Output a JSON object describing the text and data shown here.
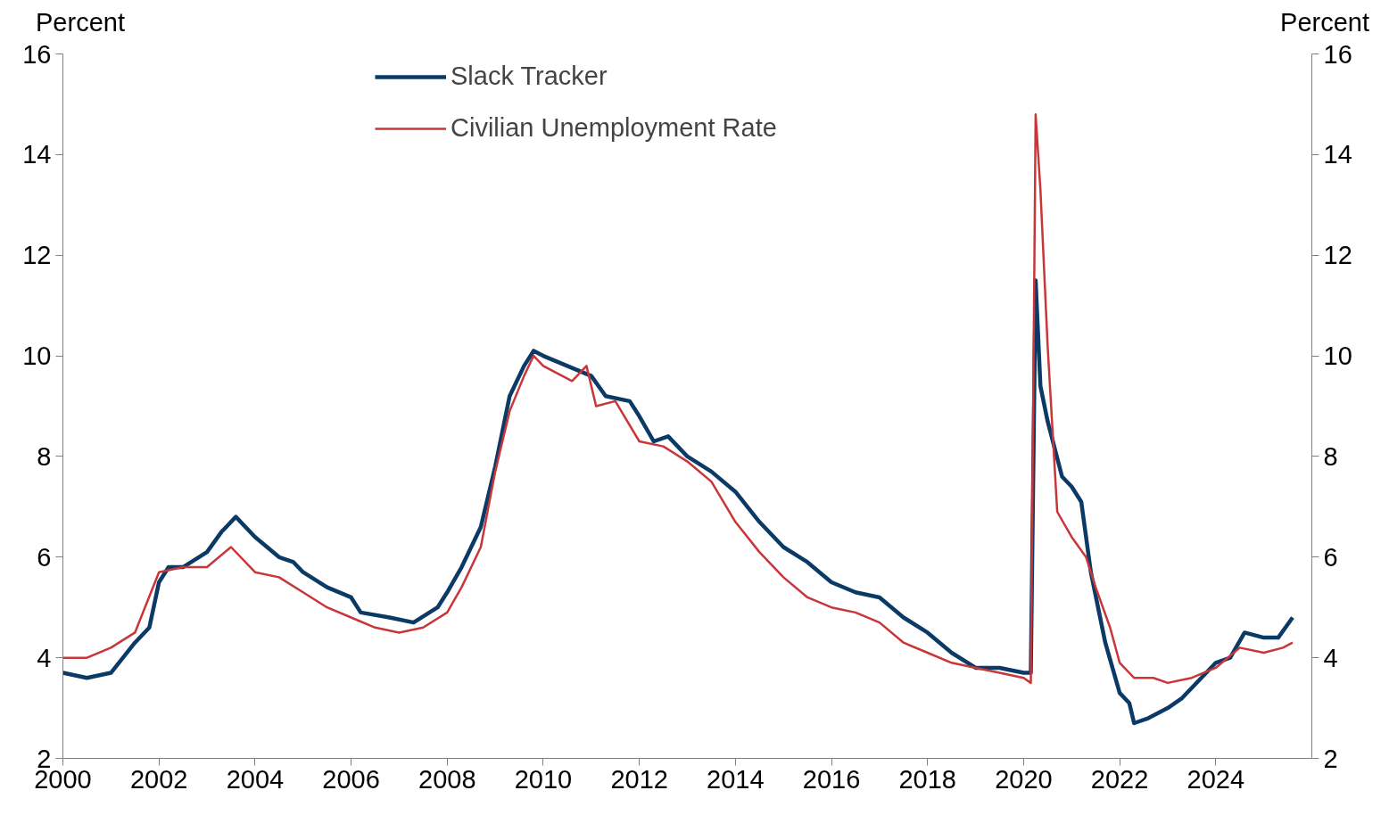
{
  "chart_data": {
    "type": "line",
    "ylabel": "Percent",
    "y2label": "Percent",
    "xlim": [
      2000,
      2026
    ],
    "xticks": [
      2000,
      2002,
      2004,
      2006,
      2008,
      2010,
      2012,
      2014,
      2016,
      2018,
      2020,
      2022,
      2024
    ],
    "ylim": [
      2,
      16
    ],
    "yticks": [
      2,
      4,
      6,
      8,
      10,
      12,
      14,
      16
    ],
    "y2lim": [
      2,
      16
    ],
    "y2ticks": [
      2,
      4,
      6,
      8,
      10,
      12,
      14,
      16
    ],
    "grid": false,
    "legend": "top left",
    "marker": "none",
    "line_style": "solid",
    "series": [
      {
        "name": "Slack Tracker",
        "color": "#0b3a66",
        "x": [
          2000,
          2000.5,
          2001,
          2001.5,
          2001.8,
          2002,
          2002.2,
          2002.5,
          2003,
          2003.3,
          2003.6,
          2004,
          2004.5,
          2004.8,
          2005,
          2005.5,
          2006,
          2006.2,
          2006.8,
          2007.3,
          2007.8,
          2008,
          2008.3,
          2008.7,
          2009,
          2009.3,
          2009.6,
          2009.8,
          2010,
          2010.5,
          2011,
          2011.3,
          2011.8,
          2012,
          2012.3,
          2012.6,
          2013,
          2013.5,
          2014,
          2014.5,
          2015,
          2015.5,
          2016,
          2016.5,
          2017,
          2017.5,
          2018,
          2018.5,
          2019,
          2019.5,
          2020,
          2020.15,
          2020.25,
          2020.35,
          2020.5,
          2020.8,
          2021,
          2021.2,
          2021.4,
          2021.7,
          2022,
          2022.2,
          2022.3,
          2022.6,
          2023,
          2023.3,
          2023.7,
          2024,
          2024.3,
          2024.6,
          2025,
          2025.3,
          2025.6
        ],
        "values": [
          3.7,
          3.6,
          3.7,
          4.3,
          4.6,
          5.5,
          5.8,
          5.8,
          6.1,
          6.5,
          6.8,
          6.4,
          6.0,
          5.9,
          5.7,
          5.4,
          5.2,
          4.9,
          4.8,
          4.7,
          5.0,
          5.3,
          5.8,
          6.6,
          7.8,
          9.2,
          9.8,
          10.1,
          10.0,
          9.8,
          9.6,
          9.2,
          9.1,
          8.8,
          8.3,
          8.4,
          8.0,
          7.7,
          7.3,
          6.7,
          6.2,
          5.9,
          5.5,
          5.3,
          5.2,
          4.8,
          4.5,
          4.1,
          3.8,
          3.8,
          3.7,
          3.7,
          11.5,
          9.4,
          8.7,
          7.6,
          7.4,
          7.1,
          5.7,
          4.3,
          3.3,
          3.1,
          2.7,
          2.8,
          3.0,
          3.2,
          3.6,
          3.9,
          4.0,
          4.5,
          4.4,
          4.4,
          4.8
        ]
      },
      {
        "name": "Civilian Unemployment Rate",
        "color": "#c8363a",
        "x": [
          2000,
          2000.5,
          2001,
          2001.5,
          2002,
          2002.5,
          2003,
          2003.5,
          2004,
          2004.5,
          2005,
          2005.5,
          2006,
          2006.5,
          2007,
          2007.5,
          2008,
          2008.3,
          2008.7,
          2009,
          2009.3,
          2009.6,
          2009.8,
          2010,
          2010.6,
          2010.9,
          2011.1,
          2011.5,
          2012,
          2012.5,
          2013,
          2013.5,
          2014,
          2014.5,
          2015,
          2015.5,
          2016,
          2016.5,
          2017,
          2017.5,
          2018,
          2018.5,
          2019,
          2019.5,
          2020,
          2020.15,
          2020.25,
          2020.35,
          2020.5,
          2020.7,
          2021,
          2021.3,
          2021.5,
          2021.8,
          2022,
          2022.3,
          2022.7,
          2023,
          2023.5,
          2024,
          2024.5,
          2025,
          2025.4,
          2025.6
        ],
        "values": [
          4.0,
          4.0,
          4.2,
          4.5,
          5.7,
          5.8,
          5.8,
          6.2,
          5.7,
          5.6,
          5.3,
          5.0,
          4.8,
          4.6,
          4.5,
          4.6,
          4.9,
          5.4,
          6.2,
          7.7,
          8.9,
          9.6,
          10.0,
          9.8,
          9.5,
          9.8,
          9.0,
          9.1,
          8.3,
          8.2,
          7.9,
          7.5,
          6.7,
          6.1,
          5.6,
          5.2,
          5.0,
          4.9,
          4.7,
          4.3,
          4.1,
          3.9,
          3.8,
          3.7,
          3.6,
          3.5,
          14.8,
          13.3,
          10.2,
          6.9,
          6.4,
          6.0,
          5.4,
          4.6,
          3.9,
          3.6,
          3.6,
          3.5,
          3.6,
          3.8,
          4.2,
          4.1,
          4.2,
          4.3
        ]
      }
    ]
  }
}
